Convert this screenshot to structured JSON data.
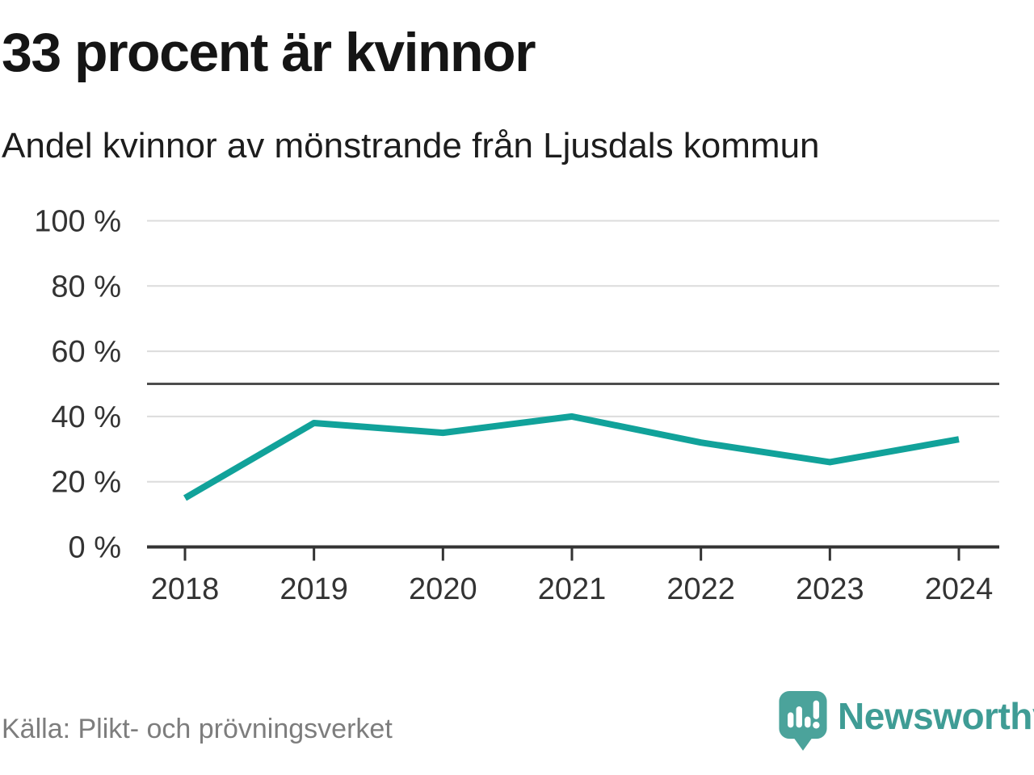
{
  "chart_data": {
    "type": "line",
    "title": "33 procent är kvinnor",
    "subtitle": "Andel kvinnor av mönstrande från Ljusdals kommun",
    "source": "Källa: Plikt- och prövningsverket",
    "categories": [
      "2018",
      "2019",
      "2020",
      "2021",
      "2022",
      "2023",
      "2024"
    ],
    "series": [
      {
        "name": "Andel kvinnor",
        "values": [
          15,
          38,
          35,
          40,
          32,
          26,
          33
        ]
      }
    ],
    "xlabel": "",
    "ylabel": "",
    "ylim": [
      0,
      100
    ],
    "yticks": [
      0,
      20,
      40,
      60,
      80,
      100
    ],
    "ytick_labels": [
      "0 %",
      "20 %",
      "40 %",
      "60 %",
      "80 %",
      "100 %"
    ],
    "reference_line": 50,
    "grid": true,
    "legend": "none",
    "line_color": "#11A29A",
    "reference_line_color": "#4d4d4d",
    "gridline_color": "#dcdcdc",
    "axis_color": "#333333"
  },
  "branding": {
    "wordmark": "Newsworthy",
    "logo_icon": "speech-bubble-bar-chart-exclamation",
    "logo_color": "#4BA39B",
    "wordmark_color": "#3F9C95"
  }
}
